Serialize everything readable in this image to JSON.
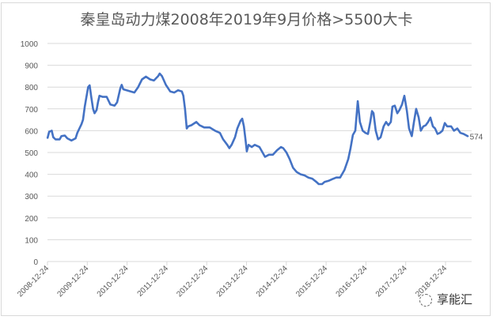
{
  "chart_data": {
    "type": "line",
    "title": "秦皇岛动力煤2008年2019年9月价格>5500大卡",
    "xlabel": "",
    "ylabel": "",
    "ylim": [
      0,
      1000
    ],
    "yticks": [
      "0",
      "100",
      "200",
      "300",
      "400",
      "500",
      "600",
      "700",
      "800",
      "900",
      "1000"
    ],
    "xticks": [
      "2008-12-24",
      "2009-12-24",
      "2010-12-24",
      "2011-12-24",
      "2012-12-24",
      "2013-12-24",
      "2014-12-24",
      "2015-12-24",
      "2016-12-24",
      "2017-12-24",
      "2018-12-24"
    ],
    "grid": true,
    "legend": "none",
    "line_color": "#4472c4",
    "end_label": "574",
    "series": [
      {
        "x": [
          "2008-12-24",
          "2009-01-08",
          "2009-02-01",
          "2009-02-15",
          "2009-03-08",
          "2009-04-15",
          "2009-05-01",
          "2009-06-01",
          "2009-06-24",
          "2009-08-01",
          "2009-09-08",
          "2009-09-24",
          "2009-10-08",
          "2009-11-01",
          "2009-11-15",
          "2009-12-01",
          "2009-12-15",
          "2010-01-01",
          "2010-01-15",
          "2010-01-28",
          "2010-02-15",
          "2010-03-01",
          "2010-03-20",
          "2010-04-01",
          "2010-04-15",
          "2010-05-15",
          "2010-06-20",
          "2010-07-24",
          "2010-09-01",
          "2010-09-24",
          "2010-10-08",
          "2010-10-24",
          "2010-11-05",
          "2010-11-20",
          "2010-12-20",
          "2011-01-26",
          "2011-03-01",
          "2011-04-05",
          "2011-05-10",
          "2011-06-15",
          "2011-07-24",
          "2011-08-28",
          "2011-10-05",
          "2011-10-20",
          "2011-11-10",
          "2011-12-15",
          "2012-01-24",
          "2012-03-01",
          "2012-04-05",
          "2012-05-10",
          "2012-05-24",
          "2012-06-08",
          "2012-06-24",
          "2012-07-08",
          "2012-08-05",
          "2012-09-20",
          "2012-10-20",
          "2012-12-01",
          "2013-01-20",
          "2013-03-10",
          "2013-04-24",
          "2013-05-24",
          "2013-07-01",
          "2013-07-20",
          "2013-08-10",
          "2013-09-10",
          "2013-10-01",
          "2013-10-30",
          "2013-11-15",
          "2013-11-30",
          "2013-12-15",
          "2013-12-27",
          "2014-01-12",
          "2014-02-10",
          "2014-03-10",
          "2014-04-22",
          "2014-06-12",
          "2014-07-18",
          "2014-08-24",
          "2014-09-30",
          "2014-11-05",
          "2014-11-26",
          "2014-12-26",
          "2015-01-24",
          "2015-02-24",
          "2015-03-30",
          "2015-05-05",
          "2015-06-10",
          "2015-07-15",
          "2015-08-20",
          "2015-09-27",
          "2015-10-18",
          "2015-11-18",
          "2015-12-10",
          "2016-01-15",
          "2016-02-20",
          "2016-03-27",
          "2016-05-01",
          "2016-06-10",
          "2016-07-15",
          "2016-08-05",
          "2016-08-26",
          "2016-09-18",
          "2016-10-10",
          "2016-10-30",
          "2016-11-24",
          "2016-12-20",
          "2017-01-12",
          "2017-02-02",
          "2017-02-18",
          "2017-03-04",
          "2017-03-24",
          "2017-04-15",
          "2017-05-08",
          "2017-06-05",
          "2017-06-27",
          "2017-07-18",
          "2017-08-10",
          "2017-08-24",
          "2017-09-15",
          "2017-10-08",
          "2017-10-28",
          "2017-11-20",
          "2017-12-12",
          "2018-01-04",
          "2018-01-24",
          "2018-02-18",
          "2018-03-10",
          "2018-03-30",
          "2018-04-22",
          "2018-05-12",
          "2018-06-04",
          "2018-06-26",
          "2018-07-18",
          "2018-08-08",
          "2018-08-30",
          "2018-09-20",
          "2018-10-12",
          "2018-11-02",
          "2018-11-26",
          "2018-12-18",
          "2019-01-08",
          "2019-02-14",
          "2019-03-12",
          "2019-04-12",
          "2019-05-10",
          "2019-06-08",
          "2019-07-20"
        ],
        "values": [
          565,
          595,
          600,
          570,
          560,
          560,
          575,
          578,
          565,
          555,
          565,
          590,
          605,
          630,
          650,
          710,
          750,
          800,
          808,
          760,
          700,
          680,
          695,
          730,
          760,
          755,
          755,
          720,
          715,
          730,
          760,
          795,
          810,
          790,
          785,
          780,
          775,
          800,
          835,
          848,
          835,
          830,
          850,
          862,
          850,
          810,
          780,
          775,
          785,
          780,
          760,
          700,
          610,
          620,
          625,
          640,
          625,
          615,
          615,
          600,
          590,
          560,
          535,
          520,
          535,
          570,
          610,
          645,
          655,
          620,
          560,
          505,
          535,
          525,
          535,
          525,
          480,
          490,
          490,
          510,
          525,
          520,
          500,
          470,
          430,
          410,
          400,
          395,
          385,
          380,
          365,
          355,
          355,
          365,
          370,
          378,
          385,
          385,
          420,
          470,
          520,
          580,
          600,
          735,
          640,
          600,
          590,
          585,
          640,
          690,
          680,
          600,
          560,
          570,
          620,
          640,
          625,
          640,
          710,
          715,
          680,
          695,
          720,
          760,
          690,
          610,
          575,
          640,
          700,
          660,
          600,
          620,
          625,
          640,
          660,
          620,
          610,
          585,
          590,
          600,
          635,
          620,
          620,
          600,
          610,
          590,
          585,
          574
        ]
      }
    ]
  },
  "watermark": "享能汇"
}
